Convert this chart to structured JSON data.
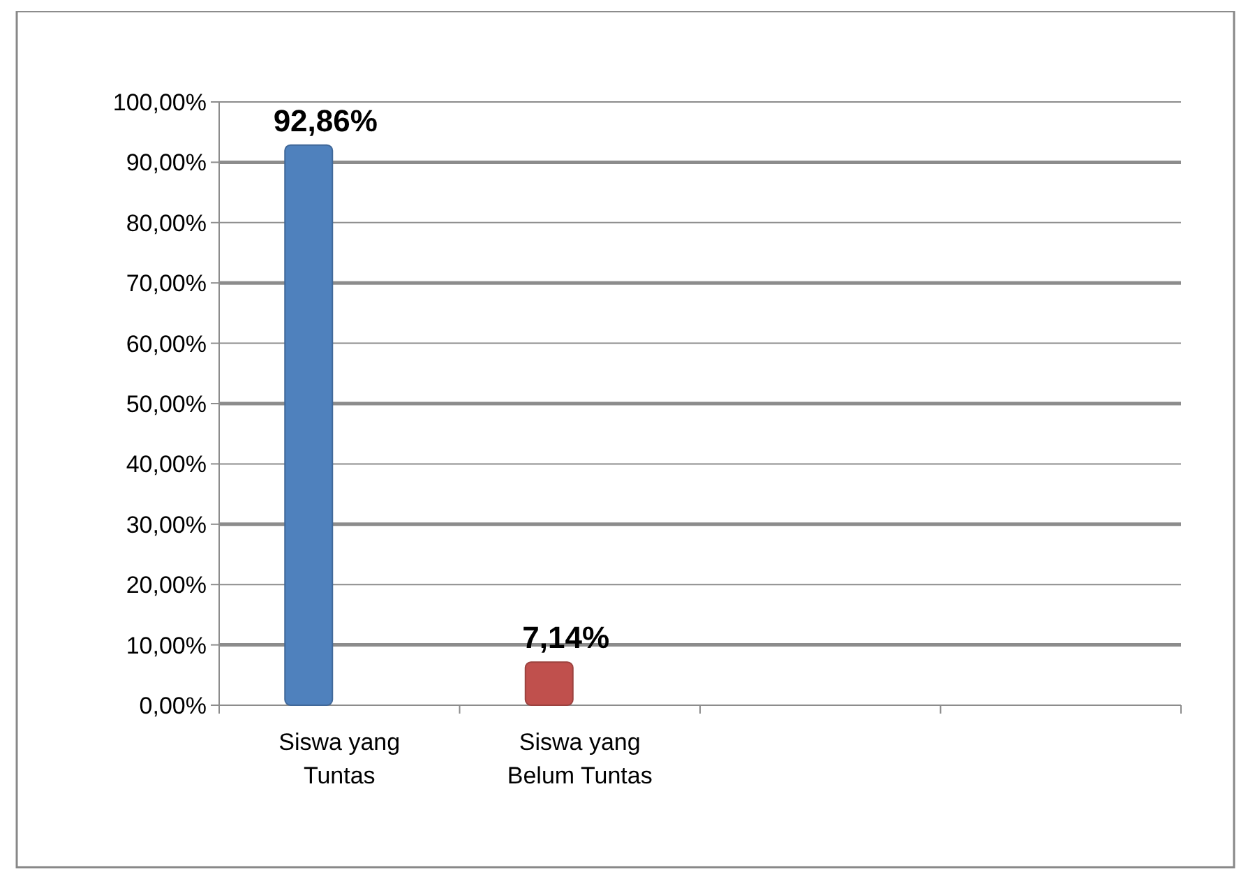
{
  "chart_data": {
    "type": "bar",
    "categories": [
      "Siswa yang Tuntas",
      "Siswa yang Belum Tuntas",
      null,
      null
    ],
    "values": [
      92.86,
      7.14,
      null,
      null
    ],
    "colors": [
      "#4f81bd",
      "#c0504d",
      null,
      null
    ],
    "value_labels": [
      "92,86%",
      "7,14%",
      null,
      null
    ],
    "ylim": [
      0,
      100
    ],
    "yticks": [
      {
        "value": 0,
        "label": "0,00%"
      },
      {
        "value": 10,
        "label": "10,00%"
      },
      {
        "value": 20,
        "label": "20,00%"
      },
      {
        "value": 30,
        "label": "30,00%"
      },
      {
        "value": 40,
        "label": "40,00%"
      },
      {
        "value": 50,
        "label": "50,00%"
      },
      {
        "value": 60,
        "label": "60,00%"
      },
      {
        "value": 70,
        "label": "70,00%"
      },
      {
        "value": 80,
        "label": "80,00%"
      },
      {
        "value": 90,
        "label": "90,00%"
      },
      {
        "value": 100,
        "label": "100,00%"
      }
    ],
    "grid": "y"
  }
}
